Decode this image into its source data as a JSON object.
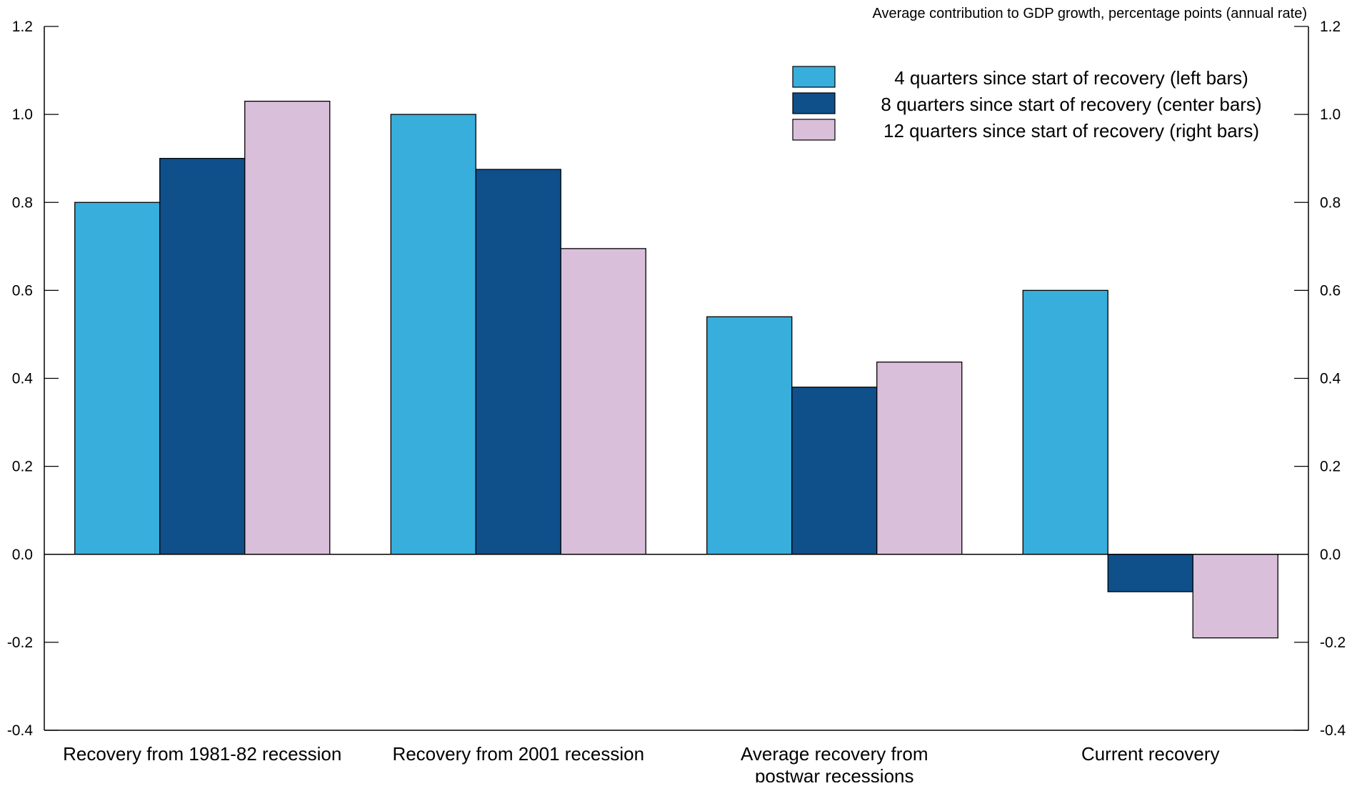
{
  "chart_data": {
    "type": "bar",
    "units_note": "Average contribution to GDP growth, percentage points (annual rate)",
    "categories": [
      [
        "Recovery from 1981-82 recession"
      ],
      [
        "Recovery from 2001 recession"
      ],
      [
        "Average recovery from",
        "postwar recessions"
      ],
      [
        "Current recovery"
      ]
    ],
    "series": [
      {
        "name": "4 quarters since start of recovery (left bars)",
        "color": "#37AEDC",
        "values": [
          0.8,
          1.0,
          0.54,
          0.6
        ]
      },
      {
        "name": "8 quarters since start of recovery (center bars)",
        "color": "#0F4F8A",
        "values": [
          0.9,
          0.875,
          0.38,
          -0.085
        ]
      },
      {
        "name": "12 quarters since start of recovery (right bars)",
        "color": "#D9BFDA",
        "values": [
          1.03,
          0.695,
          0.437,
          -0.19
        ]
      }
    ],
    "ylim": [
      -0.4,
      1.2
    ],
    "yticks": [
      "-0.4",
      "-0.2",
      "0.0",
      "0.2",
      "0.4",
      "0.6",
      "0.8",
      "1.0",
      "1.2"
    ],
    "legend_position": "top-right",
    "grid": false
  }
}
